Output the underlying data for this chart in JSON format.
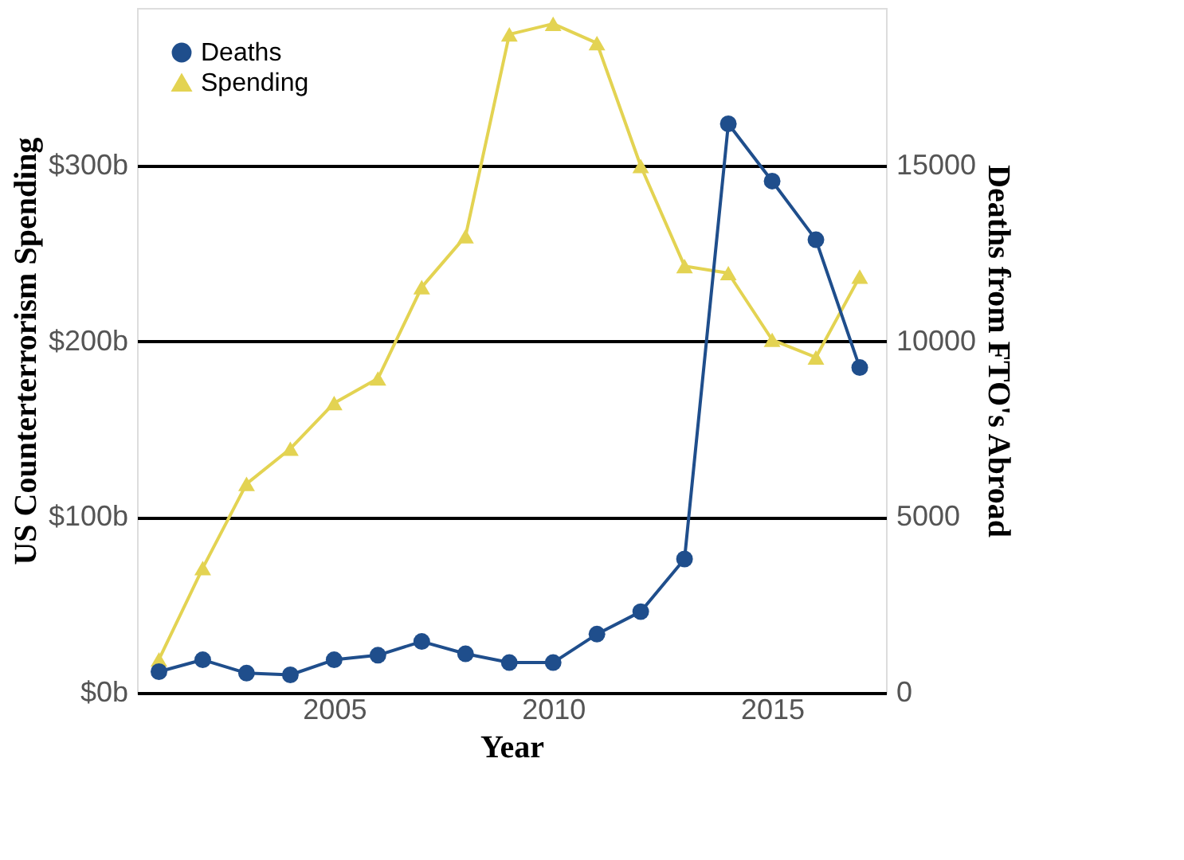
{
  "chart_data": {
    "type": "line",
    "xlabel": "Year",
    "ylabel": "US Counterterrorism Spending",
    "y2label": "Deaths from FTO's Abroad",
    "x": [
      2001,
      2002,
      2003,
      2004,
      2005,
      2006,
      2007,
      2008,
      2009,
      2010,
      2011,
      2012,
      2013,
      2014,
      2015,
      2016,
      2017
    ],
    "series": [
      {
        "name": "Deaths",
        "color": "#1f4e8c",
        "marker": "circle",
        "axis": "y2",
        "values": [
          600,
          940,
          560,
          510,
          940,
          1070,
          1460,
          1110,
          860,
          860,
          1670,
          2310,
          3810,
          16200,
          14570,
          12900,
          9260
        ]
      },
      {
        "name": "Spending",
        "color": "#e3d352",
        "marker": "triangle",
        "values": [
          19,
          71,
          119,
          139,
          165,
          179,
          231,
          260,
          375,
          381,
          370,
          300,
          243,
          239,
          201,
          191,
          237
        ]
      }
    ],
    "xlim": [
      2000.5,
      2017.6
    ],
    "xticks": [
      2005,
      2010,
      2015
    ],
    "ylim": [
      0,
      390
    ],
    "yticks": [
      {
        "value": 0,
        "label": "$0b"
      },
      {
        "value": 100,
        "label": "$100b"
      },
      {
        "value": 200,
        "label": "$200b"
      },
      {
        "value": 300,
        "label": "$300b"
      }
    ],
    "y2lim": [
      0,
      19500
    ],
    "y2ticks": [
      0,
      5000,
      10000,
      15000
    ],
    "grid": "y",
    "legend": "top left"
  }
}
